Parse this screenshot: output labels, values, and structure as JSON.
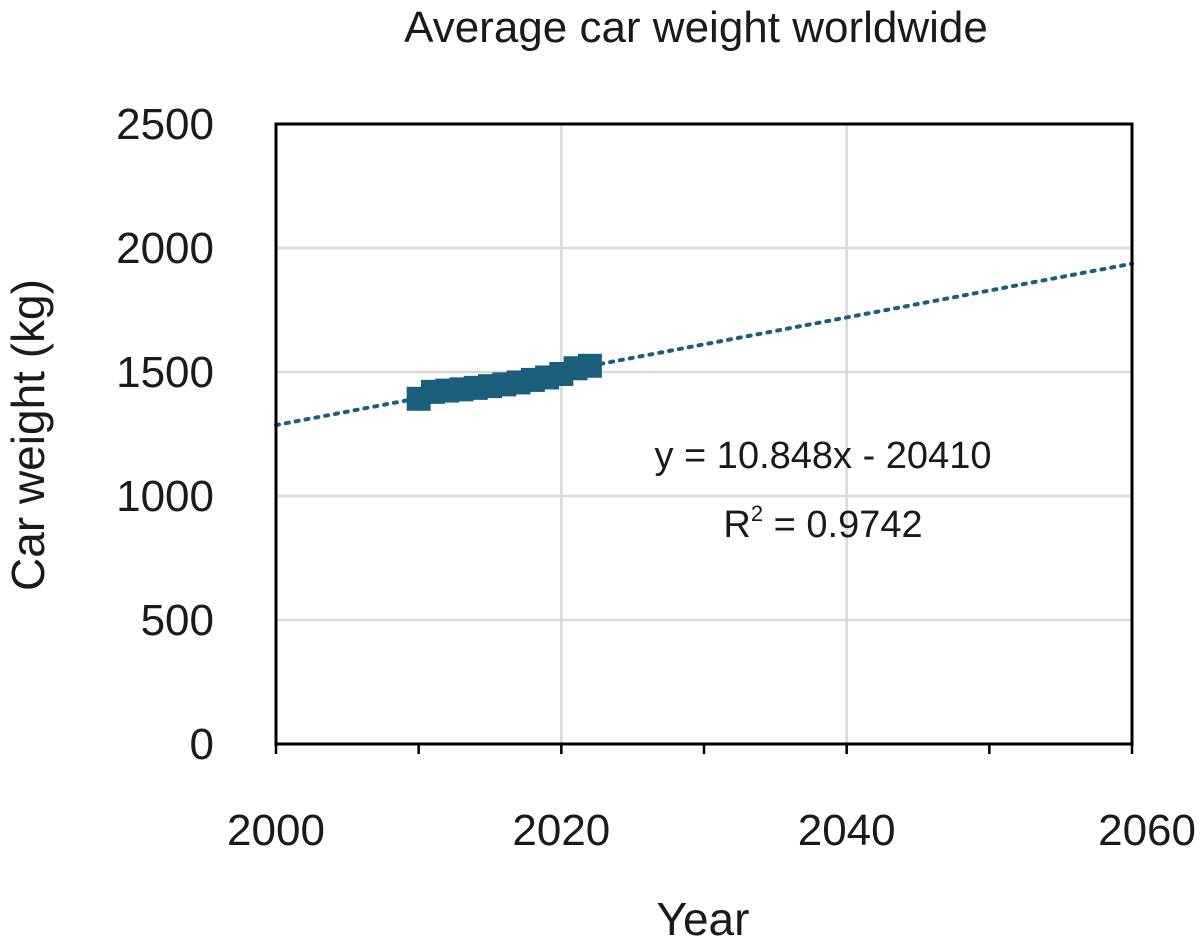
{
  "chart_data": {
    "type": "scatter",
    "title": "Average car weight worldwide",
    "xlabel": "Year",
    "ylabel": "Car weight (kg)",
    "xlim": [
      2000,
      2060
    ],
    "ylim": [
      0,
      2500
    ],
    "x_major_ticks": [
      2000,
      2020,
      2040,
      2060
    ],
    "x_tick_labels": [
      "2000",
      "2020",
      "2040",
      "2060"
    ],
    "x_minor_ticks": [
      2010,
      2030,
      2050
    ],
    "y_ticks": [
      0,
      500,
      1000,
      1500,
      2000,
      2500
    ],
    "y_tick_labels": [
      "0",
      "500",
      "1000",
      "1500",
      "2000",
      "2500"
    ],
    "grid": true,
    "legend": "none",
    "series": [
      {
        "color": "#1c5f7d",
        "marker": "square",
        "points": [
          {
            "x": 2010,
            "y": 1392
          },
          {
            "x": 2011,
            "y": 1420
          },
          {
            "x": 2012,
            "y": 1425
          },
          {
            "x": 2013,
            "y": 1430
          },
          {
            "x": 2014,
            "y": 1436
          },
          {
            "x": 2015,
            "y": 1443
          },
          {
            "x": 2016,
            "y": 1450
          },
          {
            "x": 2017,
            "y": 1458
          },
          {
            "x": 2018,
            "y": 1468
          },
          {
            "x": 2019,
            "y": 1478
          },
          {
            "x": 2020,
            "y": 1492
          },
          {
            "x": 2021,
            "y": 1515
          },
          {
            "x": 2022,
            "y": 1525
          }
        ]
      }
    ],
    "trendline": {
      "type": "linear",
      "slope": 10.848,
      "intercept": -20410,
      "color": "#1c5f7d",
      "style": "dotted",
      "x_range": [
        2000,
        2060
      ]
    },
    "annotations": {
      "equation": "y = 10.848x - 20410",
      "r2_prefix": "R",
      "r2_superscript": "2",
      "r2_value": " = 0.9742"
    }
  }
}
